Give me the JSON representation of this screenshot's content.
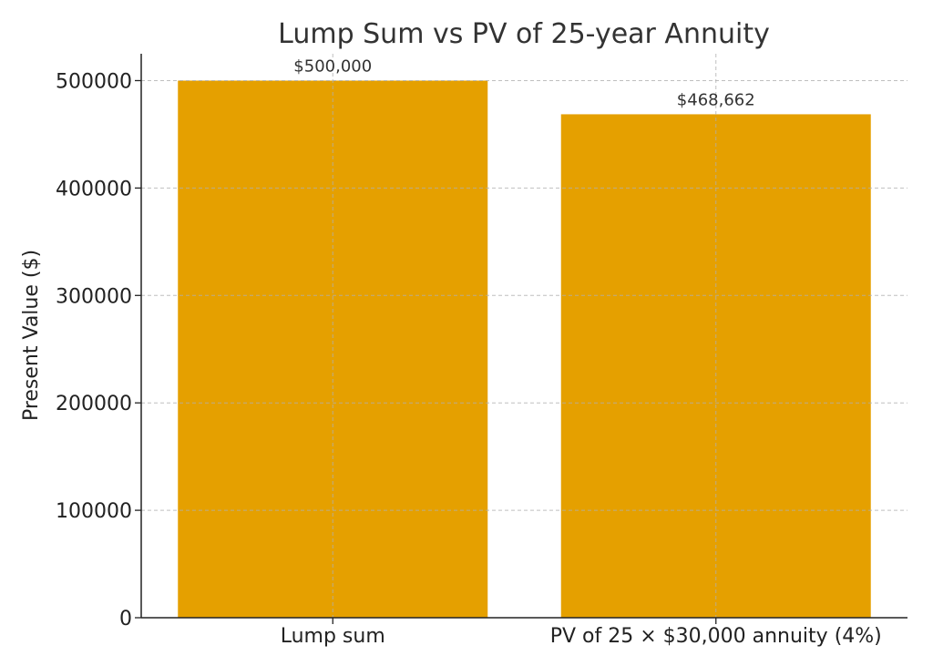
{
  "chart_data": {
    "type": "bar",
    "title": "Lump Sum vs PV of 25-year Annuity",
    "xlabel": "",
    "ylabel": "Present Value ($)",
    "categories": [
      "Lump sum",
      "PV of 25 × $30,000 annuity (4%)"
    ],
    "values": [
      500000,
      468662
    ],
    "data_labels": [
      "$500,000",
      "$468,662"
    ],
    "ylim": [
      0,
      525000
    ],
    "yticks": [
      0,
      100000,
      200000,
      300000,
      400000,
      500000
    ],
    "ytick_labels": [
      "0",
      "100000",
      "200000",
      "300000",
      "400000",
      "500000"
    ],
    "grid": true,
    "bar_color": "#E5A000"
  }
}
